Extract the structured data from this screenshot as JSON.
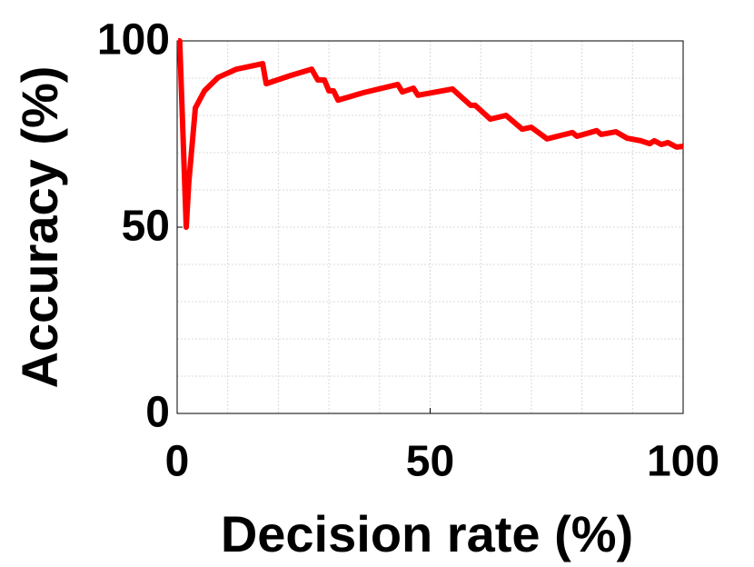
{
  "chart_data": {
    "type": "line",
    "x_label": "Decision rate (%)",
    "y_label": "Accuracy (%)",
    "xlim": [
      0,
      100
    ],
    "ylim": [
      0,
      100
    ],
    "xticks": [
      0,
      50,
      100
    ],
    "yticks": [
      0,
      50,
      100
    ],
    "minor_grid_step": 10,
    "grid": true,
    "series": [
      {
        "color": "#ff0000",
        "x": [
          0.2,
          0.5,
          1.8,
          2.3,
          3.6,
          5.4,
          8.1,
          11.7,
          16.9,
          17.6,
          22.4,
          26.6,
          27.8,
          29.1,
          30.0,
          30.9,
          31.8,
          36.8,
          43.6,
          44.5,
          46.7,
          47.6,
          54.4,
          58.0,
          58.9,
          61.9,
          65.0,
          68.2,
          70.0,
          73.1,
          78.1,
          79.0,
          82.9,
          83.8,
          86.7,
          88.9,
          91.6,
          93.4,
          94.3,
          95.7,
          97.0,
          98.7,
          100
        ],
        "values": [
          100,
          100,
          50,
          62,
          82,
          86.6,
          90.2,
          92.4,
          93.9,
          88.5,
          90.7,
          92.4,
          89.5,
          89.5,
          86.6,
          86.6,
          84.1,
          86.1,
          88.3,
          86.3,
          87.3,
          85.4,
          87.1,
          82.7,
          82.7,
          79,
          80,
          76.3,
          76.8,
          73.7,
          75.4,
          74.4,
          75.9,
          74.9,
          75.6,
          73.9,
          73.2,
          72.4,
          73.2,
          72.2,
          72.7,
          71.5,
          71.7
        ]
      }
    ]
  }
}
